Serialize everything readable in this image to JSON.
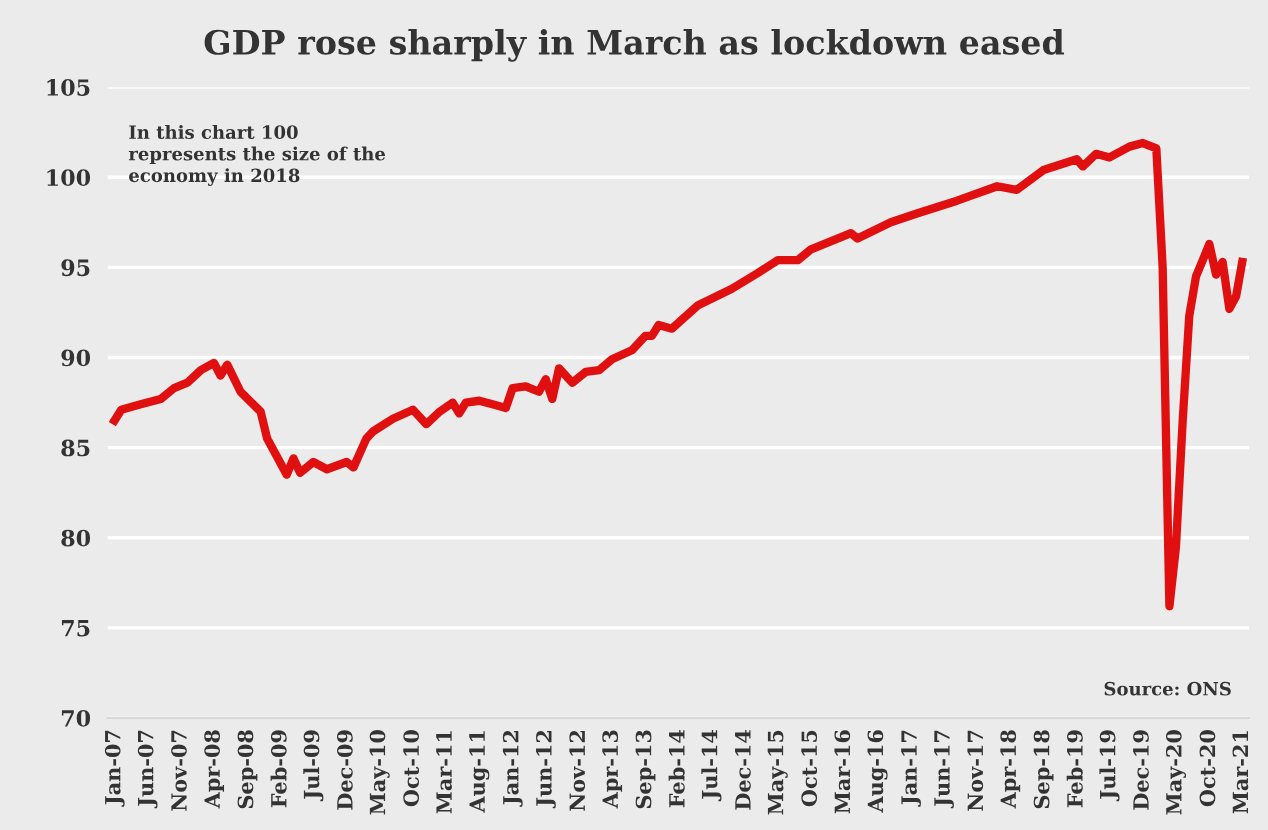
{
  "chart_data": {
    "type": "line",
    "title": "GDP rose sharply in March as lockdown eased",
    "annotations": [
      "In this chart 100\nrepresents the size of the\neconomy in 2018",
      "Source: ONS"
    ],
    "x": [
      "2007-01",
      "2007-02",
      "2007-05",
      "2007-08",
      "2007-10",
      "2007-12",
      "2008-02",
      "2008-04",
      "2008-05",
      "2008-06",
      "2008-08",
      "2008-11",
      "2008-12",
      "2009-03",
      "2009-04",
      "2009-05",
      "2009-07",
      "2009-09",
      "2009-12",
      "2010-01",
      "2010-03",
      "2010-04",
      "2010-07",
      "2010-10",
      "2010-12",
      "2011-02",
      "2011-04",
      "2011-05",
      "2011-06",
      "2011-08",
      "2011-10",
      "2011-12",
      "2012-01",
      "2012-03",
      "2012-05",
      "2012-06",
      "2012-07",
      "2012-08",
      "2012-10",
      "2012-12",
      "2013-02",
      "2013-04",
      "2013-07",
      "2013-09",
      "2013-10",
      "2013-11",
      "2014-01",
      "2014-05",
      "2014-10",
      "2015-02",
      "2015-05",
      "2015-08",
      "2015-10",
      "2016-04",
      "2016-05",
      "2016-10",
      "2017-02",
      "2017-08",
      "2018-02",
      "2018-05",
      "2018-09",
      "2019-02",
      "2019-03",
      "2019-05",
      "2019-07",
      "2019-10",
      "2019-12",
      "2020-02",
      "2020-03",
      "2020-04",
      "2020-05",
      "2020-06",
      "2020-07",
      "2020-08",
      "2020-09",
      "2020-10",
      "2020-11",
      "2020-12",
      "2021-01",
      "2021-02",
      "2021-03"
    ],
    "series": [
      {
        "color": "#e01010",
        "values": [
          86.5,
          87.1,
          87.4,
          87.7,
          88.3,
          88.6,
          89.3,
          89.7,
          89.0,
          89.6,
          88.1,
          87.0,
          85.5,
          83.5,
          84.4,
          83.6,
          84.2,
          83.8,
          84.2,
          83.9,
          85.5,
          85.9,
          86.6,
          87.1,
          86.3,
          87.0,
          87.5,
          86.9,
          87.5,
          87.6,
          87.4,
          87.2,
          88.3,
          88.4,
          88.1,
          88.8,
          87.7,
          89.4,
          88.6,
          89.2,
          89.3,
          89.9,
          90.4,
          91.2,
          91.2,
          91.8,
          91.6,
          92.9,
          93.8,
          94.7,
          95.4,
          95.4,
          96.0,
          96.9,
          96.6,
          97.5,
          98.0,
          98.7,
          99.5,
          99.3,
          100.4,
          101.0,
          100.6,
          101.3,
          101.1,
          101.7,
          101.9,
          101.6,
          95.0,
          76.2,
          79.5,
          86.5,
          92.3,
          94.5,
          95.4,
          96.3,
          94.6,
          95.3,
          92.7,
          93.4,
          95.3
        ]
      }
    ],
    "xlim": [
      "2006-12",
      "2021-04"
    ],
    "xticks": [
      {
        "value": "2007-01",
        "label": "Jan-07"
      },
      {
        "value": "2007-06",
        "label": "Jun-07"
      },
      {
        "value": "2007-11",
        "label": "Nov-07"
      },
      {
        "value": "2008-04",
        "label": "Apr-08"
      },
      {
        "value": "2008-09",
        "label": "Sep-08"
      },
      {
        "value": "2009-02",
        "label": "Feb-09"
      },
      {
        "value": "2009-07",
        "label": "Jul-09"
      },
      {
        "value": "2009-12",
        "label": "Dec-09"
      },
      {
        "value": "2010-05",
        "label": "May-10"
      },
      {
        "value": "2010-10",
        "label": "Oct-10"
      },
      {
        "value": "2011-03",
        "label": "Mar-11"
      },
      {
        "value": "2011-08",
        "label": "Aug-11"
      },
      {
        "value": "2012-01",
        "label": "Jan-12"
      },
      {
        "value": "2012-06",
        "label": "Jun-12"
      },
      {
        "value": "2012-11",
        "label": "Nov-12"
      },
      {
        "value": "2013-04",
        "label": "Apr-13"
      },
      {
        "value": "2013-09",
        "label": "Sep-13"
      },
      {
        "value": "2014-02",
        "label": "Feb-14"
      },
      {
        "value": "2014-07",
        "label": "Jul-14"
      },
      {
        "value": "2014-12",
        "label": "Dec-14"
      },
      {
        "value": "2015-05",
        "label": "May-15"
      },
      {
        "value": "2015-10",
        "label": "Oct-15"
      },
      {
        "value": "2016-03",
        "label": "Mar-16"
      },
      {
        "value": "2016-08",
        "label": "Aug-16"
      },
      {
        "value": "2017-01",
        "label": "Jan-17"
      },
      {
        "value": "2017-06",
        "label": "Jun-17"
      },
      {
        "value": "2017-11",
        "label": "Nov-17"
      },
      {
        "value": "2018-04",
        "label": "Apr-18"
      },
      {
        "value": "2018-09",
        "label": "Sep-18"
      },
      {
        "value": "2019-02",
        "label": "Feb-19"
      },
      {
        "value": "2019-07",
        "label": "Jul-19"
      },
      {
        "value": "2019-12",
        "label": "Dec-19"
      },
      {
        "value": "2020-05",
        "label": "May-20"
      },
      {
        "value": "2020-10",
        "label": "Oct-20"
      },
      {
        "value": "2021-03",
        "label": "Mar-21"
      }
    ],
    "ylim": [
      70,
      105
    ],
    "yticks": [
      70,
      75,
      80,
      85,
      90,
      95,
      100,
      105
    ],
    "grid": "y",
    "legend": false,
    "marker": "none",
    "line_style": "solid"
  }
}
